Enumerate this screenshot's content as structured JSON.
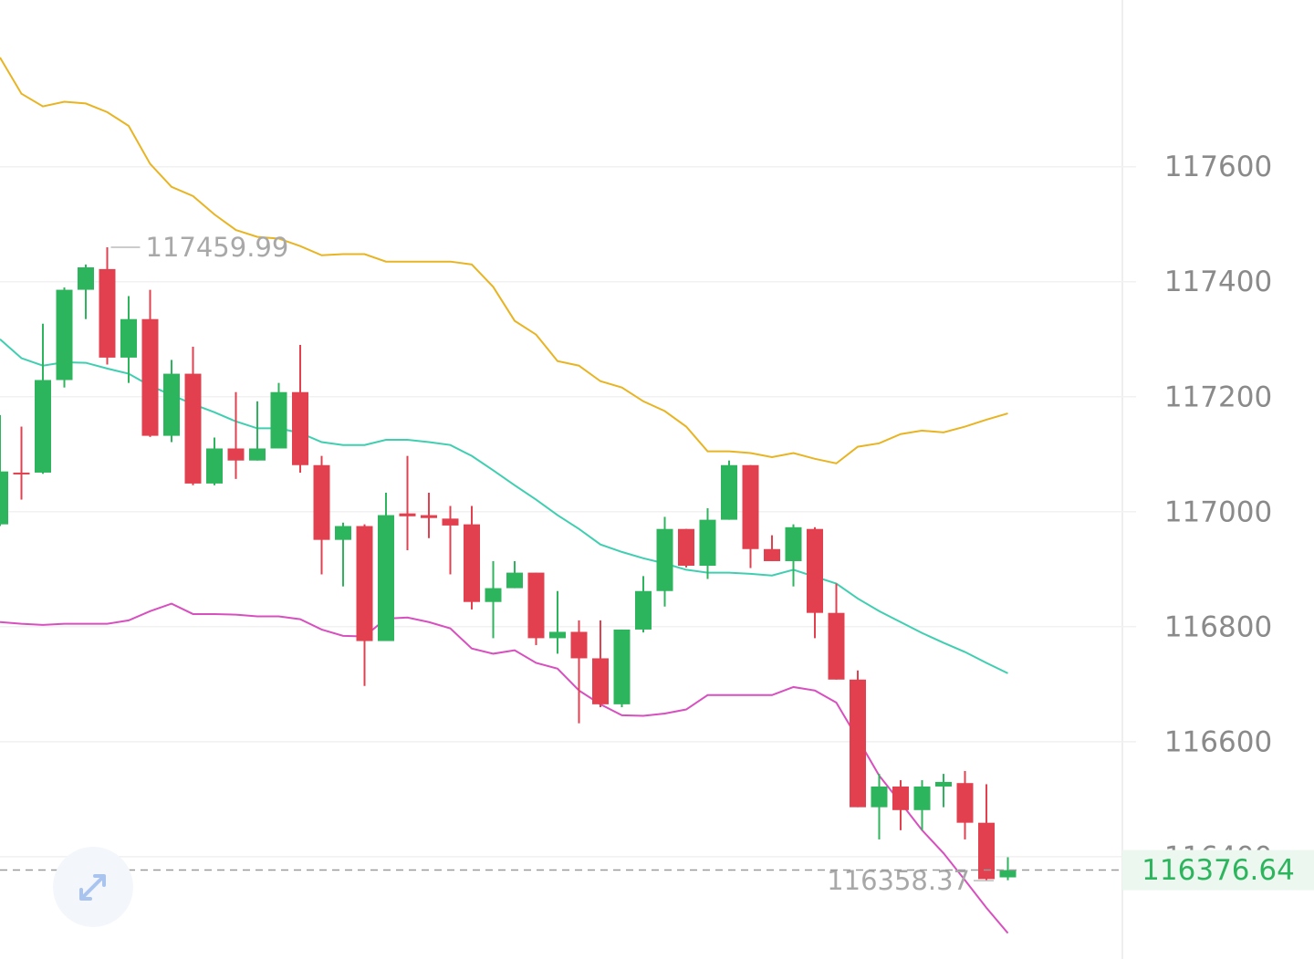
{
  "chart_data": {
    "type": "candlestick",
    "open": [
      116978,
      117068,
      117068,
      117229,
      117386,
      117422,
      117268,
      117335,
      117132,
      117240,
      117049,
      117110,
      117089,
      117110,
      117208,
      117081,
      116951,
      116975,
      116775,
      116997,
      116994,
      116988,
      116978,
      116843,
      116867,
      116894,
      116780,
      116791,
      116745,
      116665,
      116795,
      116862,
      116970,
      116906,
      116986,
      117081,
      116935,
      116914,
      116970,
      116824,
      116708,
      116486,
      116522,
      116481,
      116522,
      116528,
      116459,
      116364
    ],
    "high": [
      117168,
      117148,
      117327,
      117390,
      117430,
      117459.99,
      117375,
      117386,
      117264,
      117287,
      117129,
      117208,
      117192,
      117224,
      117290,
      117097,
      116981,
      116978,
      117033,
      117097,
      117033,
      117010,
      117010,
      116914,
      116914,
      116894,
      116862,
      116811,
      116811,
      116795,
      116888,
      116991,
      116970,
      117006,
      117089,
      117081,
      116959,
      116978,
      116973,
      116875,
      116724,
      116544,
      116533,
      116533,
      116544,
      116549,
      116526,
      116399
    ],
    "low": [
      116975,
      117021,
      117066,
      117216,
      117335,
      117256,
      117224,
      117130,
      117121,
      117046,
      117046,
      117057,
      117089,
      117110,
      117068,
      116891,
      116870,
      116697,
      116775,
      116933,
      116954,
      116891,
      116830,
      116780,
      116867,
      116768,
      116753,
      116632,
      116660,
      116660,
      116790,
      116835,
      116903,
      116883,
      116986,
      116902,
      116914,
      116870,
      116780,
      116708,
      116486,
      116430,
      116446,
      116446,
      116486,
      116430,
      116358.37,
      116359
    ],
    "close": [
      117070,
      117066,
      117229,
      117386,
      117425,
      117268,
      117335,
      117132,
      117240,
      117049,
      117110,
      117089,
      117110,
      117208,
      117081,
      116951,
      116975,
      116775,
      116994,
      116992,
      116989,
      116976,
      116843,
      116867,
      116894,
      116780,
      116791,
      116745,
      116665,
      116795,
      116862,
      116970,
      116906,
      116986,
      117081,
      116935,
      116914,
      116973,
      116824,
      116708,
      116486,
      116522,
      116481,
      116522,
      116530,
      116459,
      116361,
      116376.64
    ],
    "up_color": "#2db55d",
    "down_color": "#e3404f",
    "bands": [
      {
        "color": "#e8b422",
        "values": [
          117790,
          117727,
          117705,
          117713,
          117710,
          117695,
          117671,
          117605,
          117565,
          117549,
          117517,
          117490,
          117478,
          117475,
          117462,
          117446,
          117448,
          117448,
          117435,
          117435,
          117435,
          117435,
          117430,
          117391,
          117332,
          117308,
          117262,
          117254,
          117227,
          117216,
          117192,
          117175,
          117148,
          117105,
          117105,
          117102,
          117095,
          117102,
          117092,
          117084,
          117113,
          117119,
          117135,
          117141,
          117138,
          117148,
          117160,
          117171
        ]
      },
      {
        "color": "#3fcfb0",
        "values": [
          117300,
          117267,
          117254,
          117260,
          117259,
          117249,
          117240,
          117219,
          117203,
          117187,
          117173,
          117157,
          117145,
          117145,
          117137,
          117121,
          117116,
          117116,
          117125,
          117125,
          117121,
          117116,
          117097,
          117072,
          117046,
          117021,
          116994,
          116970,
          116943,
          116930,
          116919,
          116910,
          116899,
          116894,
          116894,
          116892,
          116889,
          116899,
          116887,
          116875,
          116849,
          116827,
          116808,
          116789,
          116772,
          116756,
          116737,
          116719
        ]
      },
      {
        "color": "#d84fbf",
        "values": [
          116808,
          116805,
          116803,
          116805,
          116805,
          116805,
          116811,
          116827,
          116840,
          116822,
          116822,
          116821,
          116818,
          116818,
          116813,
          116795,
          116784,
          116783,
          116814,
          116816,
          116808,
          116797,
          116762,
          116753,
          116759,
          116737,
          116727,
          116689,
          116665,
          116646,
          116645,
          116649,
          116656,
          116681,
          116681,
          116681,
          116681,
          116695,
          116689,
          116668,
          116605,
          116541,
          116494,
          116446,
          116406,
          116359,
          116311,
          116267
        ]
      }
    ],
    "ylim": [
      116222,
      117890
    ],
    "yticks": [
      116400,
      116600,
      116800,
      117000,
      117200,
      117400,
      117600
    ],
    "grid": true
  }
}
